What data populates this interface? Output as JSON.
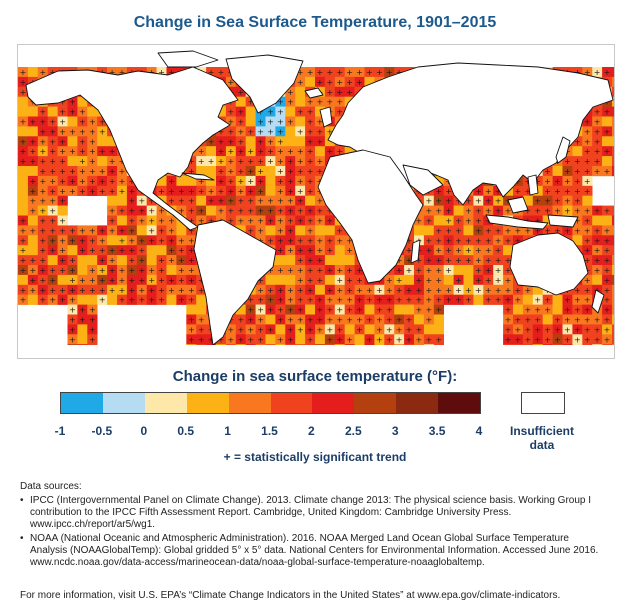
{
  "title": "Change in Sea Surface Temperature, 1901–2015",
  "map": {
    "name": "world-sea-surface-temperature-map",
    "significance_marker": "+",
    "colors": {
      "land": "#ffffff",
      "insufficient": "#ffffff"
    }
  },
  "legend": {
    "title": "Change in sea surface temperature (°F):",
    "colors": [
      "#1fa9e6",
      "#b6dcf3",
      "#fde7a9",
      "#fcb114",
      "#f9781f",
      "#f1421f",
      "#e41e1c",
      "#b4400f",
      "#8b2a11",
      "#5e0c0c"
    ],
    "ticks": [
      "-1",
      "-0.5",
      "0",
      "0.5",
      "1",
      "1.5",
      "2",
      "2.5",
      "3",
      "3.5",
      "4"
    ],
    "insufficient_label_1": "Insufficient",
    "insufficient_label_2": "data",
    "significance_note": "+ = statistically significant trend"
  },
  "sources": {
    "heading": "Data sources:",
    "bullet": "•",
    "items": [
      {
        "l1": "IPCC (Intergovernmental Panel on Climate Change). 2013. Climate change 2013: The physical science basis. Working Group I",
        "l2": "contribution to the IPCC Fifth Assessment Report. Cambridge, United Kingdom: Cambridge University Press.",
        "l3": "www.ipcc.ch/report/ar5/wg1."
      },
      {
        "l1": "NOAA (National Oceanic and Atmospheric Administration). 2016. NOAA Merged Land Ocean Global Surface Temperature",
        "l2": "Analysis (NOAAGlobalTemp): Global gridded 5° x 5° data. National Centers for Environmental Information. Accessed June 2016.",
        "l3": "www.ncdc.noaa.gov/data-access/marineocean-data/noaa-global-surface-temperature-noaaglobaltemp."
      }
    ]
  },
  "footer": "For more information, visit U.S. EPA’s “Climate Change Indicators in the United States” at www.epa.gov/climate-indicators."
}
